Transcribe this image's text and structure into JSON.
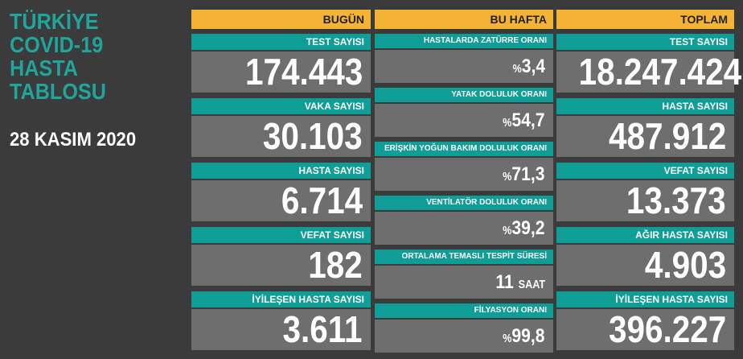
{
  "header": {
    "title_lines": [
      "TÜRKİYE",
      "COVID-19",
      "HASTA",
      "TABLOSU"
    ],
    "date": "28 KASIM 2020"
  },
  "columns": [
    {
      "title": "BUGÜN",
      "items": [
        {
          "label": "TEST SAYISI",
          "value": "174.443"
        },
        {
          "label": "VAKA SAYISI",
          "value": "30.103"
        },
        {
          "label": "HASTA SAYISI",
          "value": "6.714"
        },
        {
          "label": "VEFAT SAYISI",
          "value": "182"
        },
        {
          "label": "İYİLEŞEN HASTA SAYISI",
          "value": "3.611"
        }
      ]
    },
    {
      "title": "BU HAFTA",
      "items": [
        {
          "label": "HASTALARDA ZATÜRRE ORANI",
          "prefix": "%",
          "value": "3,4"
        },
        {
          "label": "YATAK DOLULUK ORANI",
          "prefix": "%",
          "value": "54,7"
        },
        {
          "label": "ERİŞKİN YOĞUN BAKIM DOLULUK ORANI",
          "prefix": "%",
          "value": "71,3"
        },
        {
          "label": "VENTİLATÖR DOLULUK ORANI",
          "prefix": "%",
          "value": "39,2"
        },
        {
          "label": "ORTALAMA TEMASLI TESPİT SÜRESİ",
          "value": "11",
          "suffix": "SAAT"
        },
        {
          "label": "FİLYASYON ORANI",
          "prefix": "%",
          "value": "99,8"
        }
      ]
    },
    {
      "title": "TOPLAM",
      "items": [
        {
          "label": "TEST SAYISI",
          "value": "18.247.424"
        },
        {
          "label": "HASTA SAYISI",
          "value": "487.912"
        },
        {
          "label": "VEFAT SAYISI",
          "value": "13.373"
        },
        {
          "label": "AĞIR HASTA SAYISI",
          "value": "4.903"
        },
        {
          "label": "İYİLEŞEN HASTA SAYISI",
          "value": "396.227"
        }
      ]
    }
  ]
}
